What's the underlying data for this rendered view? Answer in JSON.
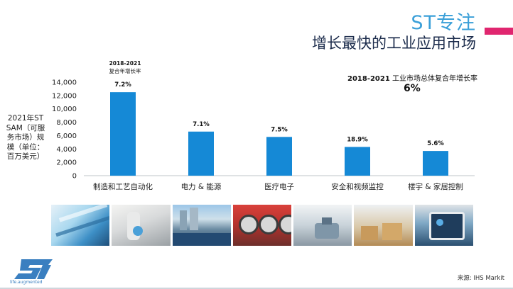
{
  "header": {
    "title": "ST专注",
    "subtitle": "增长最快的工业应用市场"
  },
  "cagr_header": {
    "years": "2018-2021",
    "label": "复合年增长率"
  },
  "total": {
    "years": "2018-2021",
    "label": "工业市场总体复合年增长率",
    "value": "6%"
  },
  "y_axis_label": [
    "2021年ST",
    "SAM（可服",
    "务市场）规",
    "模（单位：",
    "百万美元）"
  ],
  "chart_data": {
    "type": "bar",
    "categories": [
      "制造和工艺自动化",
      "电力 & 能源",
      "医疗电子",
      "安全和视频监控",
      "楼宇 & 家居控制"
    ],
    "values": [
      12500,
      6600,
      5800,
      4300,
      3700
    ],
    "data_labels": [
      "7.2%",
      "7.1%",
      "7.5%",
      "18.9%",
      "5.6%"
    ],
    "ylim": [
      0,
      14000
    ],
    "yticks": [
      0,
      2000,
      4000,
      6000,
      8000,
      10000,
      12000,
      14000
    ],
    "ytick_labels": [
      "0",
      "2,000",
      "4,000",
      "6,000",
      "8,000",
      "10,000",
      "12,000",
      "14,000"
    ],
    "bar_color": "#1589d6",
    "grid": false
  },
  "source": "来源: IHS Markit",
  "logo": {
    "text": "ST",
    "tagline": "life.augmented",
    "color": "#3a7fc0"
  }
}
